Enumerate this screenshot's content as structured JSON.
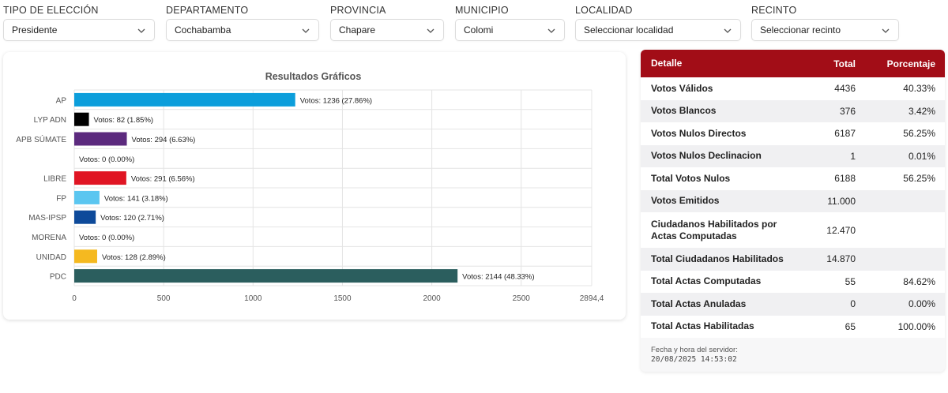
{
  "filters": [
    {
      "label": "TIPO DE ELECCIÓN",
      "value": "Presidente"
    },
    {
      "label": "DEPARTAMENTO",
      "value": "Cochabamba"
    },
    {
      "label": "PROVINCIA",
      "value": "Chapare"
    },
    {
      "label": "MUNICIPIO",
      "value": "Colomi"
    },
    {
      "label": "LOCALIDAD",
      "value": "Seleccionar localidad"
    },
    {
      "label": "RECINTO",
      "value": "Seleccionar recinto"
    }
  ],
  "chart_data": {
    "type": "bar",
    "orientation": "horizontal",
    "title": "Resultados Gráficos",
    "categories": [
      "AP",
      "LYP ADN",
      "APB SÚMATE",
      "",
      "LIBRE",
      "FP",
      "MAS-IPSP",
      "MORENA",
      "UNIDAD",
      "PDC"
    ],
    "values": [
      1236,
      82,
      294,
      0,
      291,
      141,
      120,
      0,
      128,
      2144
    ],
    "data_labels": [
      "Votos: 1236 (27.86%)",
      "Votos: 82 (1.85%)",
      "Votos: 294 (6.63%)",
      "Votos: 0 (0.00%)",
      "Votos: 291 (6.56%)",
      "Votos: 141 (3.18%)",
      "Votos: 120 (2.71%)",
      "Votos: 0 (0.00%)",
      "Votos: 128 (2.89%)",
      "Votos: 2144 (48.33%)"
    ],
    "colors": [
      "#0c9edb",
      "#000000",
      "#5c2a7e",
      "#cccccc",
      "#e01523",
      "#5bc6f0",
      "#0e4a9a",
      "#8b8b8b",
      "#f5b920",
      "#2b5e5e"
    ],
    "xlim": [
      0,
      2894.4
    ],
    "xticks": [
      "0",
      "500",
      "1000",
      "1500",
      "2000",
      "2500",
      "2894,4"
    ],
    "xtick_values": [
      0,
      500,
      1000,
      1500,
      2000,
      2500,
      2894.4
    ],
    "grid": true,
    "legend": "none"
  },
  "table": {
    "headers": {
      "detalle": "Detalle",
      "total": "Total",
      "porcentaje": "Porcentaje"
    },
    "rows": [
      {
        "label": "Votos Válidos",
        "total": "4436",
        "pct": "40.33%"
      },
      {
        "label": "Votos Blancos",
        "total": "376",
        "pct": "3.42%"
      },
      {
        "label": "Votos Nulos Directos",
        "total": "6187",
        "pct": "56.25%"
      },
      {
        "label": "Votos Nulos Declinacion",
        "total": "1",
        "pct": "0.01%"
      },
      {
        "label": "Total Votos Nulos",
        "total": "6188",
        "pct": "56.25%"
      },
      {
        "label": "Votos Emitidos",
        "total": "11.000",
        "pct": ""
      },
      {
        "label": "Ciudadanos Habilitados por Actas Computadas",
        "total": "12.470",
        "pct": ""
      },
      {
        "label": "Total Ciudadanos Habilitados",
        "total": "14.870",
        "pct": ""
      },
      {
        "label": "Total Actas Computadas",
        "total": "55",
        "pct": "84.62%"
      },
      {
        "label": "Total Actas Anuladas",
        "total": "0",
        "pct": "0.00%"
      },
      {
        "label": "Total Actas Habilitadas",
        "total": "65",
        "pct": "100.00%"
      }
    ],
    "footer_label": "Fecha y hora del servidor:",
    "footer_timestamp": "20/08/2025 14:53:02"
  },
  "icons": {
    "dropdown": "chevron-down-icon"
  }
}
